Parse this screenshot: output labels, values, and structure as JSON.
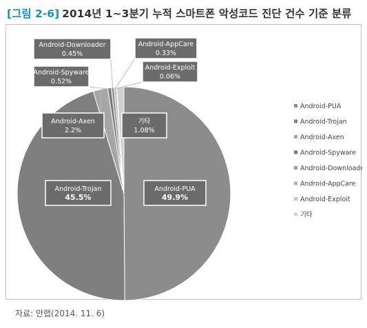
{
  "figure": {
    "label": "[그림 2-6]",
    "title": "2014년 1~3분기 누적 스마트폰 악성코드 진단 건수 기준 분류",
    "title_color": "#1a8fb8"
  },
  "source": "자료: 안랩(2014. 11. 6)",
  "chart_data": {
    "type": "pie",
    "title": "",
    "start": "12 o'clock, clockwise",
    "slices": [
      {
        "name": "Android-PUA",
        "value": 49.9,
        "label": "49.9%",
        "color": "#8c8c8c"
      },
      {
        "name": "Android-Trojan",
        "value": 45.5,
        "label": "45.5%",
        "color": "#7f7f7f"
      },
      {
        "name": "Android-Axen",
        "value": 2.2,
        "label": "2.2%",
        "color": "#a6a6a6"
      },
      {
        "name": "Android-Spyware",
        "value": 0.52,
        "label": "0.52%",
        "color": "#777777"
      },
      {
        "name": "Android-Downloader",
        "value": 0.45,
        "label": "0.45%",
        "color": "#9a9a9a"
      },
      {
        "name": "Android-AppCare",
        "value": 0.33,
        "label": "0.33%",
        "color": "#b5b5b5"
      },
      {
        "name": "Android-Exploit",
        "value": 0.06,
        "label": "0.06%",
        "color": "#c4c4c4"
      },
      {
        "name": "기타",
        "value": 1.08,
        "label": "1.08%",
        "color": "#d0d0d0"
      }
    ],
    "legend": [
      "Android-PUA",
      "Android-Trojan",
      "Android-Axen",
      "Android-Spyware",
      "Android-Downloader",
      "Android-AppCare",
      "Android-Exploit",
      "기타"
    ],
    "legend_placement": "right",
    "callout_color": "#6b6b6b"
  }
}
